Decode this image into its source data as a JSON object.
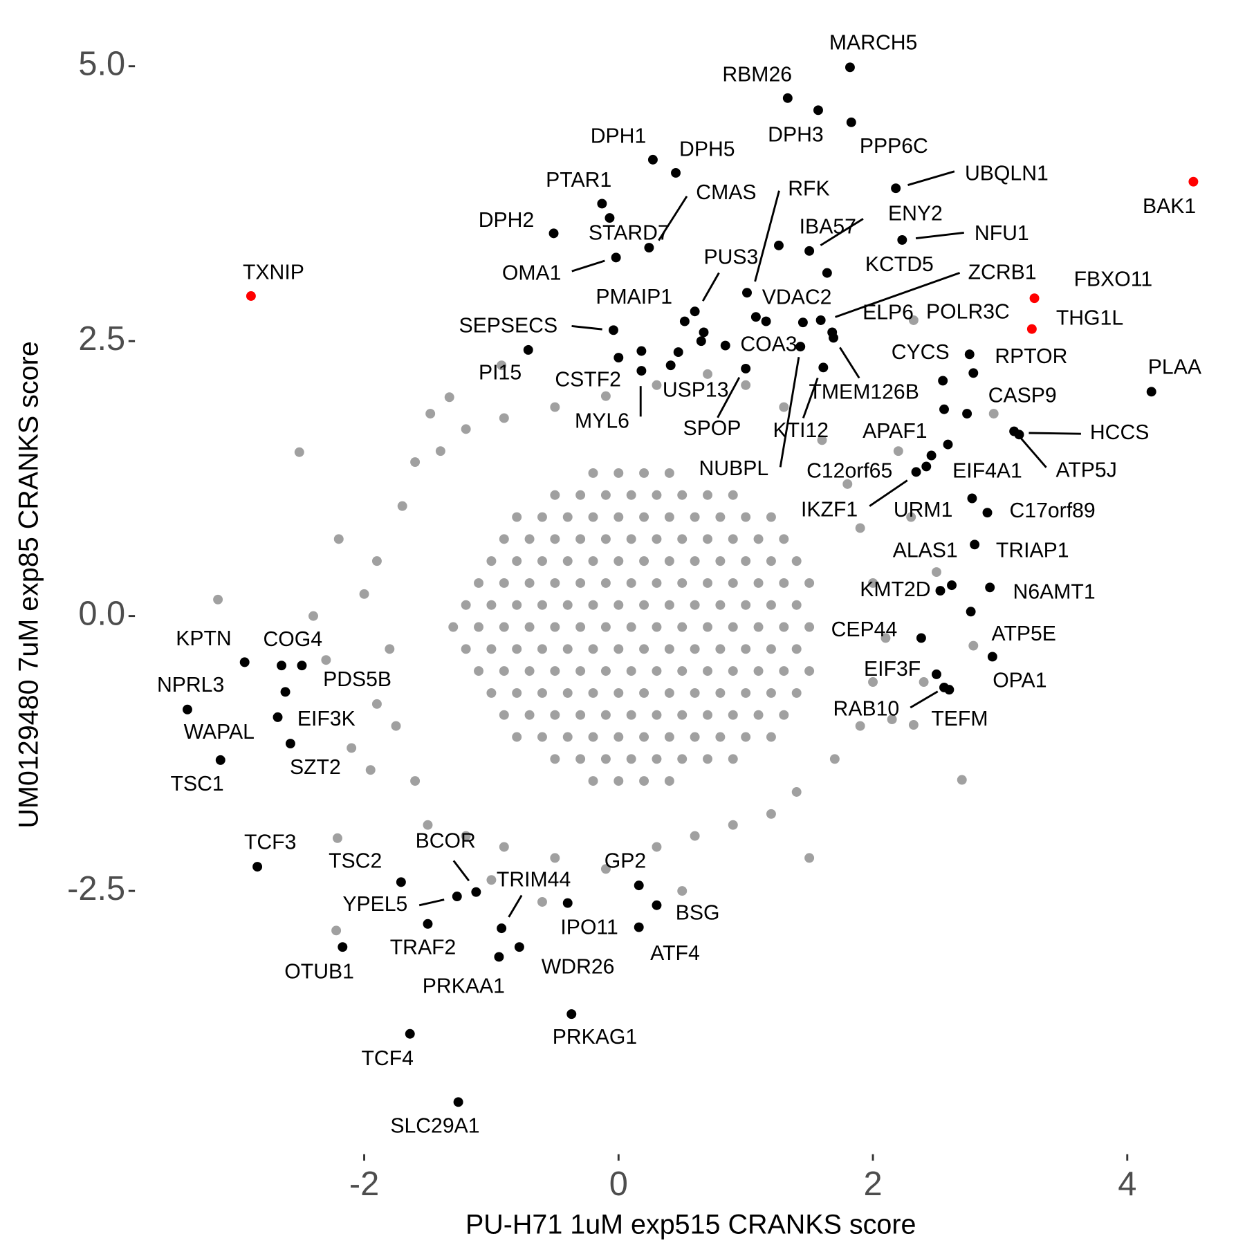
{
  "chart_data": {
    "type": "scatter",
    "xlabel": "PU-H71 1uM exp515 CRANKS score",
    "ylabel": "UM0129480 7uM exp85 CRANKS score",
    "xlim": [
      -3.79,
      4.85
    ],
    "ylim": [
      -4.88,
      5.31
    ],
    "xticks": [
      -2,
      0,
      2,
      4
    ],
    "yticks": [
      {
        "value": 5,
        "label": "5.0"
      },
      {
        "value": 2.5,
        "label": "2.5"
      },
      {
        "value": 0,
        "label": "0.0"
      },
      {
        "value": -2.5,
        "label": "-2.5"
      }
    ],
    "grid": false,
    "series": [
      {
        "color": "#a0a0a0",
        "x": [
          -0.2,
          0,
          0.2,
          0.4,
          -0.5,
          -0.3,
          -0.1,
          0.1,
          0.3,
          0.5,
          0.7,
          0.9,
          -0.8,
          -0.6,
          -0.4,
          -0.2,
          0,
          0.2,
          0.4,
          0.6,
          0.8,
          1,
          1.2,
          -0.9,
          -0.7,
          -0.5,
          -0.3,
          -0.1,
          0.1,
          0.3,
          0.5,
          0.7,
          0.9,
          1.1,
          1.3,
          -1,
          -0.8,
          -0.6,
          -0.4,
          -0.2,
          0,
          0.2,
          0.4,
          0.6,
          0.8,
          1,
          1.2,
          1.4,
          -1.1,
          -0.9,
          -0.7,
          -0.5,
          -0.3,
          -0.1,
          0.1,
          0.3,
          0.5,
          0.7,
          0.9,
          1.1,
          1.3,
          1.5,
          -1.2,
          -1,
          -0.8,
          -0.6,
          -0.4,
          -0.2,
          0,
          0.2,
          0.4,
          0.6,
          0.8,
          1,
          1.2,
          1.4,
          -1.3,
          -1.1,
          -0.9,
          -0.7,
          -0.5,
          -0.3,
          -0.1,
          0.1,
          0.3,
          0.5,
          0.7,
          0.9,
          1.1,
          1.3,
          1.5,
          -1.2,
          -1,
          -0.8,
          -0.6,
          -0.4,
          -0.2,
          0,
          0.2,
          0.4,
          0.6,
          0.8,
          1,
          1.2,
          1.4,
          -1.1,
          -0.9,
          -0.7,
          -0.5,
          -0.3,
          -0.1,
          0.1,
          0.3,
          0.5,
          0.7,
          0.9,
          1.1,
          1.3,
          1.5,
          -1,
          -0.8,
          -0.6,
          -0.4,
          -0.2,
          0,
          0.2,
          0.4,
          0.6,
          0.8,
          1,
          1.2,
          1.4,
          -0.9,
          -0.7,
          -0.5,
          -0.3,
          -0.1,
          0.1,
          0.3,
          0.5,
          0.7,
          0.9,
          1.1,
          1.3,
          -0.8,
          -0.6,
          -0.4,
          -0.2,
          0,
          0.2,
          0.4,
          0.6,
          0.8,
          1,
          1.2,
          -0.5,
          -0.3,
          -0.1,
          0.1,
          0.3,
          0.5,
          0.7,
          0.9,
          -0.2,
          0,
          0.2,
          0.4,
          -1.9,
          -1.8,
          -1.7,
          -1.75,
          -1.6,
          -1.6,
          -1.9,
          -2.0,
          -1.95,
          -1.5,
          -1.2,
          -0.9,
          -0.5,
          -0.1,
          0.3,
          0.6,
          0.9,
          1.2,
          1.4,
          1.7,
          1.9,
          2.0,
          2.1,
          2.0,
          1.9,
          1.8,
          1.6,
          1.3,
          1.0,
          0.7,
          0.3,
          -0.1,
          -0.5,
          -0.9,
          -1.2,
          -1.4,
          -2.2,
          -2.3,
          -2.1,
          2.3,
          2.4,
          2.2,
          -1.0,
          0.5,
          -0.6,
          1.5,
          -2.4,
          2.5,
          -2.51,
          -3.15,
          2.7,
          2.32,
          2.15,
          2.32,
          2.95,
          2.79,
          -2.21,
          -2.22,
          -0.92,
          -1.48,
          -1.33
        ],
        "y": [
          1.3,
          1.3,
          1.3,
          1.3,
          1.1,
          1.1,
          1.1,
          1.1,
          1.1,
          1.1,
          1.1,
          1.1,
          0.9,
          0.9,
          0.9,
          0.9,
          0.9,
          0.9,
          0.9,
          0.9,
          0.9,
          0.9,
          0.9,
          0.7,
          0.7,
          0.7,
          0.7,
          0.7,
          0.7,
          0.7,
          0.7,
          0.7,
          0.7,
          0.7,
          0.7,
          0.5,
          0.5,
          0.5,
          0.5,
          0.5,
          0.5,
          0.5,
          0.5,
          0.5,
          0.5,
          0.5,
          0.5,
          0.5,
          0.3,
          0.3,
          0.3,
          0.3,
          0.3,
          0.3,
          0.3,
          0.3,
          0.3,
          0.3,
          0.3,
          0.3,
          0.3,
          0.3,
          0.1,
          0.1,
          0.1,
          0.1,
          0.1,
          0.1,
          0.1,
          0.1,
          0.1,
          0.1,
          0.1,
          0.1,
          0.1,
          0.1,
          -0.1,
          -0.1,
          -0.1,
          -0.1,
          -0.1,
          -0.1,
          -0.1,
          -0.1,
          -0.1,
          -0.1,
          -0.1,
          -0.1,
          -0.1,
          -0.1,
          -0.1,
          -0.3,
          -0.3,
          -0.3,
          -0.3,
          -0.3,
          -0.3,
          -0.3,
          -0.3,
          -0.3,
          -0.3,
          -0.3,
          -0.3,
          -0.3,
          -0.3,
          -0.5,
          -0.5,
          -0.5,
          -0.5,
          -0.5,
          -0.5,
          -0.5,
          -0.5,
          -0.5,
          -0.5,
          -0.5,
          -0.5,
          -0.5,
          -0.5,
          -0.7,
          -0.7,
          -0.7,
          -0.7,
          -0.7,
          -0.7,
          -0.7,
          -0.7,
          -0.7,
          -0.7,
          -0.7,
          -0.7,
          -0.7,
          -0.9,
          -0.9,
          -0.9,
          -0.9,
          -0.9,
          -0.9,
          -0.9,
          -0.9,
          -0.9,
          -0.9,
          -0.9,
          -0.9,
          -1.1,
          -1.1,
          -1.1,
          -1.1,
          -1.1,
          -1.1,
          -1.1,
          -1.1,
          -1.1,
          -1.1,
          -1.1,
          -1.3,
          -1.3,
          -1.3,
          -1.3,
          -1.3,
          -1.3,
          -1.3,
          -1.3,
          -1.5,
          -1.5,
          -1.5,
          -1.5,
          0.5,
          -0.3,
          1.0,
          -1.0,
          1.4,
          -1.5,
          -0.8,
          0.2,
          -1.4,
          -1.9,
          -2.0,
          -2.1,
          -2.2,
          -2.3,
          -2.1,
          -2.0,
          -1.9,
          -1.8,
          -1.6,
          -1.3,
          -1.0,
          -0.6,
          -0.2,
          0.3,
          0.8,
          1.2,
          1.6,
          1.9,
          2.1,
          2.2,
          2.1,
          2.0,
          1.9,
          1.8,
          1.7,
          1.5,
          0.7,
          -0.4,
          -1.2,
          0.9,
          -0.6,
          1.5,
          -2.4,
          -2.5,
          -2.6,
          -2.2,
          0.0,
          0.4,
          1.49,
          0.15,
          -1.49,
          -0.99,
          -0.94,
          2.69,
          1.84,
          -0.27,
          -2.02,
          -2.86,
          2.28,
          1.84,
          1.99
        ]
      },
      {
        "color": "#000000",
        "labels": [
          "MARCH5",
          "RBM26",
          "DPH3",
          "PPP6C",
          "DPH1",
          "DPH5",
          "UBQLN1",
          "PTAR1",
          "STARD7",
          "DPH2",
          "CMAS",
          "ENY2",
          "IBA57",
          "NFU1",
          "OMA1",
          "KCTD5",
          "RFK",
          "PUS3",
          "PMAIP1",
          "VDAC2",
          "ZCRB1",
          "ELP6",
          "POLR3C",
          "TMEM126B",
          "SEPSECS",
          "PI15",
          "CSTF2",
          "MYL6",
          "USP13",
          "COA3",
          "SPOP",
          "KTI12",
          "NUBPL",
          "CYCS",
          "RPTOR",
          "PLAA",
          "CASP9",
          "HCCS",
          "ATP5J",
          "APAF1",
          "C12orf65",
          "EIF4A1",
          "IKZF1",
          "URM1",
          "C17orf89",
          "TRIAP1",
          "ALAS1",
          "KMT2D",
          "N6AMT1",
          "ATP5E",
          "CEP44",
          "OPA1",
          "EIF3F",
          "RAB10",
          "TEFM",
          "KPTN",
          "COG4",
          "PDS5B",
          "EIF3K",
          "NPRL3",
          "WAPAL",
          "SZT2",
          "TSC1",
          "TCF3",
          "TSC2",
          "BCOR",
          "YPEL5",
          "TRIM44",
          "GP2",
          "BSG",
          "IPO11",
          "TRAF2",
          "ATF4",
          "OTUB1",
          "WDR26",
          "PRKAA1",
          "PRKAG1",
          "TCF4",
          "SLC29A1",
          null,
          null,
          null,
          null,
          null,
          null,
          null
        ],
        "x": [
          1.82,
          1.33,
          1.57,
          1.83,
          0.27,
          0.45,
          2.18,
          -0.13,
          -0.07,
          -0.51,
          0.24,
          1.5,
          1.26,
          2.23,
          -0.02,
          1.64,
          1.01,
          0.6,
          0.52,
          1.08,
          1.59,
          1.45,
          1.68,
          1.69,
          -0.04,
          -0.71,
          0.0,
          0.18,
          0.41,
          0.84,
          1.0,
          1.61,
          1.43,
          2.55,
          2.79,
          4.19,
          2.74,
          3.15,
          3.11,
          2.59,
          2.34,
          2.42,
          2.46,
          2.78,
          2.9,
          2.8,
          2.62,
          2.53,
          2.92,
          2.77,
          2.38,
          2.94,
          2.5,
          2.56,
          2.6,
          -2.94,
          -2.65,
          -2.49,
          -2.62,
          -3.39,
          -2.68,
          -2.58,
          -3.13,
          -2.84,
          -1.71,
          -1.12,
          -1.27,
          -0.92,
          0.16,
          0.3,
          -0.4,
          -1.5,
          0.16,
          -2.17,
          -0.78,
          -0.94,
          -0.37,
          -1.64,
          -1.26,
          0.18,
          0.47,
          0.67,
          0.65,
          1.16,
          2.76,
          2.56
        ],
        "y": [
          4.99,
          4.71,
          4.6,
          4.49,
          4.15,
          4.03,
          3.89,
          3.75,
          3.62,
          3.48,
          3.35,
          3.32,
          3.37,
          3.42,
          3.26,
          3.12,
          2.94,
          2.77,
          2.68,
          2.72,
          2.69,
          2.67,
          2.58,
          2.53,
          2.6,
          2.42,
          2.35,
          2.23,
          2.28,
          2.46,
          2.25,
          2.26,
          2.45,
          2.14,
          2.21,
          2.04,
          1.84,
          1.65,
          1.68,
          1.56,
          1.31,
          1.36,
          1.46,
          1.07,
          0.94,
          0.65,
          0.28,
          0.23,
          0.26,
          0.04,
          -0.2,
          -0.37,
          -0.53,
          -0.65,
          -0.67,
          -0.42,
          -0.45,
          -0.45,
          -0.69,
          -0.85,
          -0.92,
          -1.16,
          -1.31,
          -2.28,
          -2.42,
          -2.51,
          -2.55,
          -2.84,
          -2.45,
          -2.63,
          -2.61,
          -2.8,
          -2.83,
          -3.01,
          -3.01,
          -3.1,
          -3.62,
          -3.8,
          -4.42,
          2.41,
          2.4,
          2.58,
          2.5,
          2.68,
          2.38,
          1.88
        ]
      },
      {
        "color": "#ff0000",
        "labels": [
          "TXNIP",
          "BAK1",
          "FBXO11",
          "THG1L"
        ],
        "x": [
          -2.89,
          4.52,
          3.27,
          3.25
        ],
        "y": [
          2.91,
          3.95,
          2.89,
          2.61
        ]
      }
    ]
  }
}
